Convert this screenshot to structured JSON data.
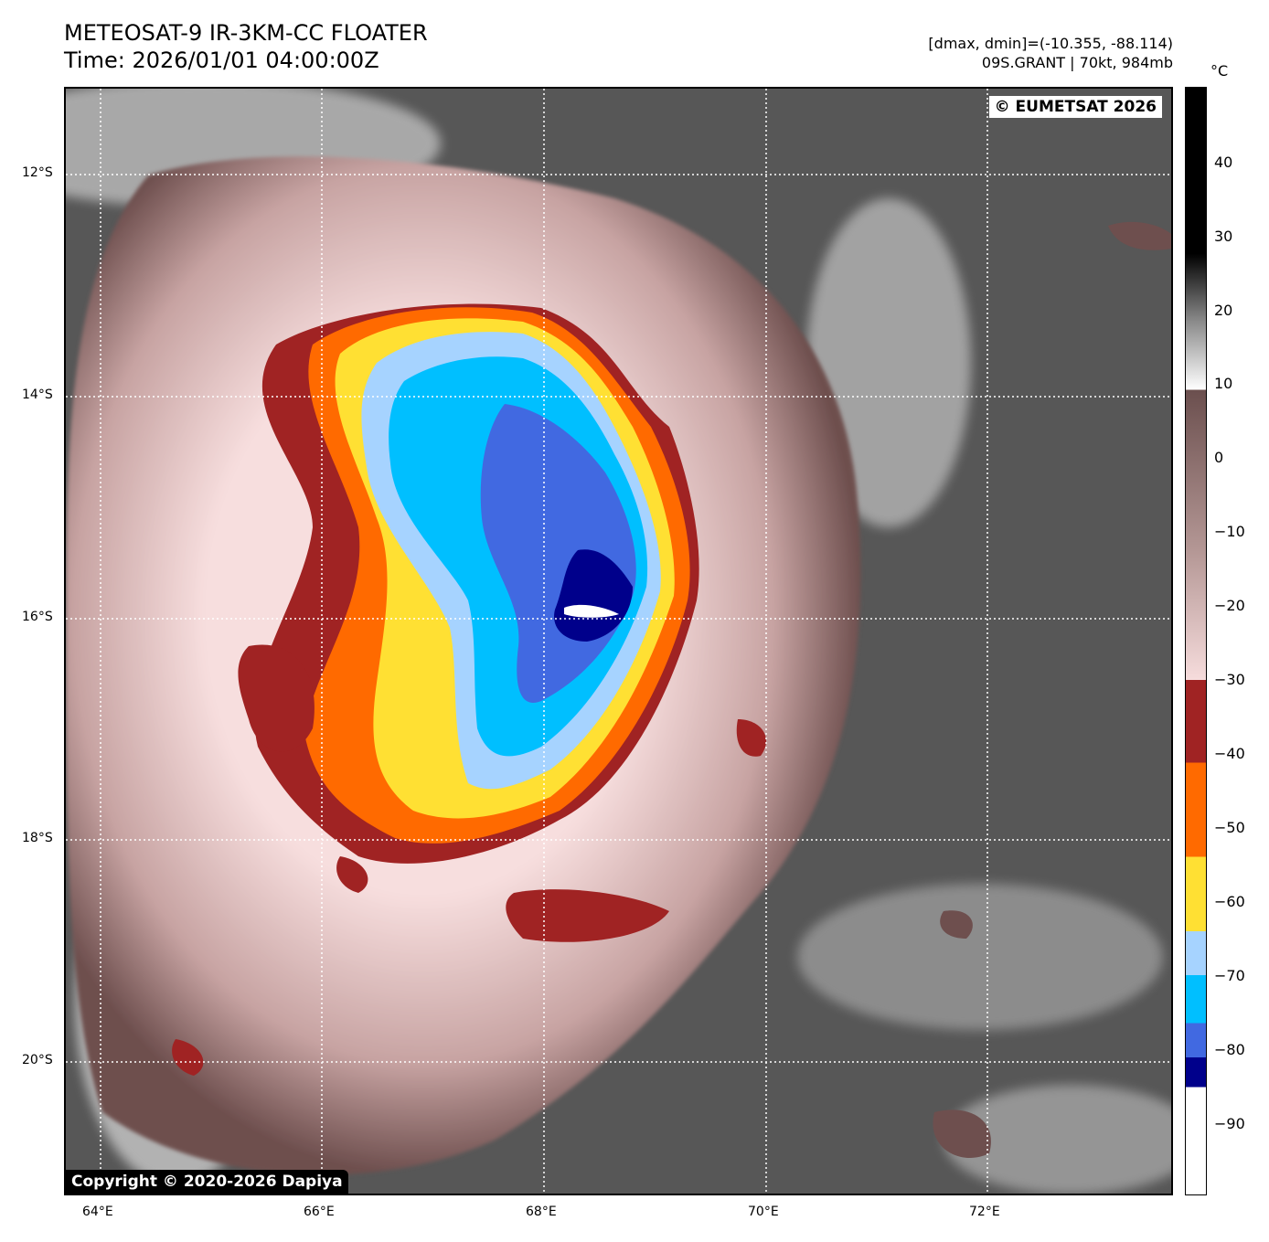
{
  "header": {
    "title": "METEOSAT-9 IR-3KM-CC FLOATER",
    "time": "Time: 2026/01/01 04:00:00Z",
    "range": "[dmax, dmin]=(-10.355, -88.114)",
    "storm": "09S.GRANT | 70kt, 984mb"
  },
  "map": {
    "credit_top": "© EUMETSAT 2026",
    "credit_bottom": "Copyright © 2020-2026 Dapiya",
    "lat_labels": [
      "12°S",
      "14°S",
      "16°S",
      "18°S",
      "20°S"
    ],
    "lon_labels": [
      "64°E",
      "66°E",
      "68°E",
      "70°E",
      "72°E"
    ]
  },
  "colorbar": {
    "unit": "°C",
    "ticks": [
      "40",
      "30",
      "20",
      "10",
      "0",
      "−10",
      "−20",
      "−30",
      "−40",
      "−50",
      "−60",
      "−70",
      "−80",
      "−90"
    ],
    "colors": {
      "warm_black": "#000000",
      "white": "#ffffff",
      "brown": "#6b4f4e",
      "pink": "#f6dcdc",
      "dark_red": "#a02323",
      "orange": "#ff6a00",
      "yellow": "#ffe033",
      "light_blue": "#a6d3ff",
      "cyan": "#00bfff",
      "royal_blue": "#4169e1",
      "navy": "#00008b"
    }
  }
}
